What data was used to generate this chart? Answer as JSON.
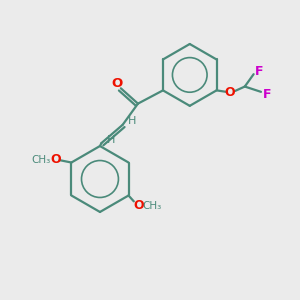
{
  "background_color": "#ebebeb",
  "bond_color": "#4a8a7a",
  "o_color": "#ee1100",
  "f_color": "#cc00cc",
  "figsize": [
    3.0,
    3.0
  ],
  "dpi": 100,
  "xlim": [
    0,
    10
  ],
  "ylim": [
    0,
    10
  ]
}
